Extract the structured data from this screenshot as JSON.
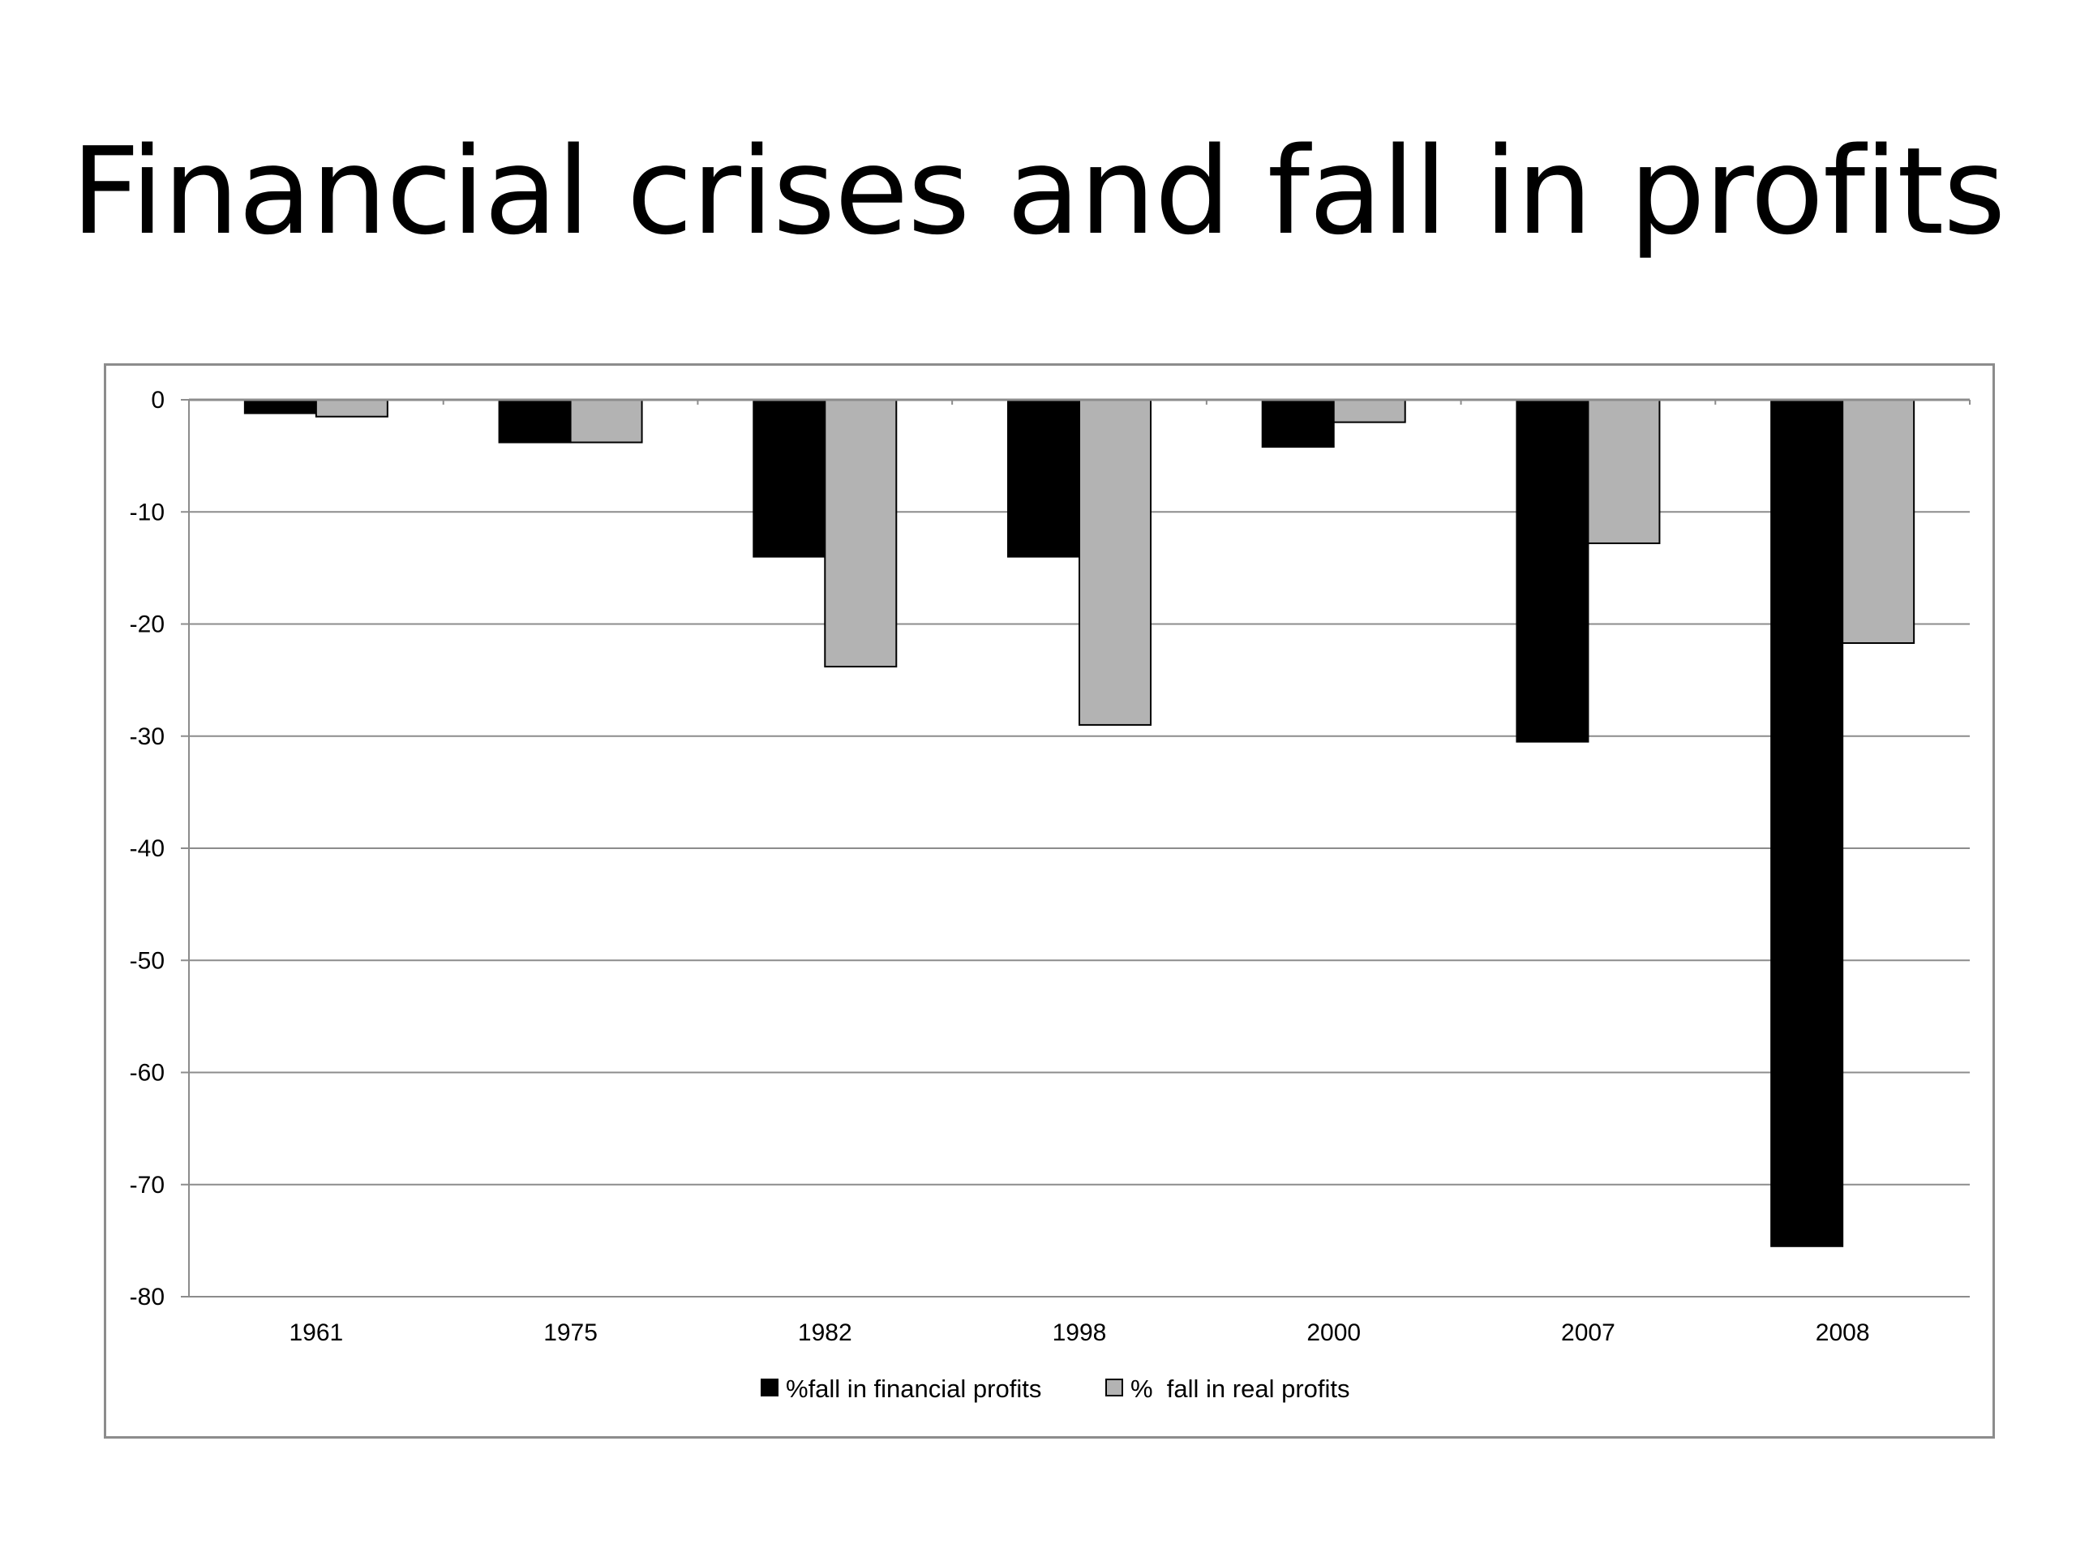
{
  "slide": {
    "title": "Financial crises and fall in profits"
  },
  "chart_data": {
    "type": "bar",
    "title": "",
    "xlabel": "",
    "ylabel": "",
    "categories": [
      "1961",
      "1975",
      "1982",
      "1998",
      "2000",
      "2007",
      "2008"
    ],
    "series": [
      {
        "name": "%fall in financial profits",
        "values": [
          -1.2,
          -3.8,
          -14,
          -14,
          -4.2,
          -30.5,
          -75.5
        ],
        "color": "#000000"
      },
      {
        "name": "%  fall in real profits",
        "values": [
          -1.5,
          -3.8,
          -23.8,
          -29,
          -2,
          -12.8,
          -21.7
        ],
        "color": "#b3b3b3"
      }
    ],
    "ylim": [
      -80,
      0
    ],
    "yticks": [
      0,
      -10,
      -20,
      -30,
      -40,
      -50,
      -60,
      -70,
      -80
    ],
    "grid": true,
    "legend": "bottom"
  }
}
